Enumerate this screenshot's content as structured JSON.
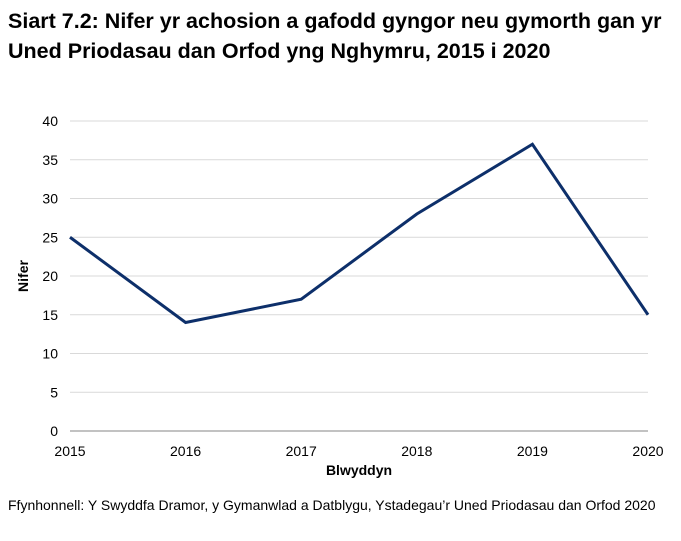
{
  "chart_data": {
    "type": "line",
    "title": "Siart 7.2: Nifer yr achosion a gafodd gyngor neu gymorth gan yr Uned Priodasau dan Orfod yng Nghymru, 2015 i 2020",
    "xlabel": "Blwyddyn",
    "ylabel": "Nifer",
    "categories": [
      "2015",
      "2016",
      "2017",
      "2018",
      "2019",
      "2020"
    ],
    "values": [
      25,
      14,
      17,
      28,
      37,
      15
    ],
    "ylim": [
      0,
      40
    ],
    "yticks": [
      "0",
      "5",
      "10",
      "15",
      "20",
      "25",
      "30",
      "35",
      "40"
    ],
    "grid": true,
    "line_color": "#0d2f6a",
    "source": "Ffynhonnell: Y Swyddfa Dramor, y Gymanwlad a Datblygu, Ystadegau’r Uned Priodasau dan Orfod 2020"
  }
}
